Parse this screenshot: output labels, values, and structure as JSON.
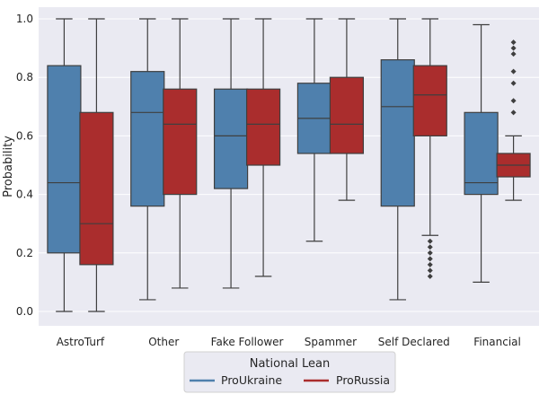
{
  "chart_data": {
    "type": "box",
    "ylabel": "Probability",
    "xlabel": "",
    "ylim": [
      -0.05,
      1.02
    ],
    "yticks": [
      0.0,
      0.2,
      0.4,
      0.6,
      0.8,
      1.0
    ],
    "ytick_labels": [
      "0.0",
      "0.2",
      "0.4",
      "0.6",
      "0.8",
      "1.0"
    ],
    "grid": true,
    "categories": [
      "AstroTurf",
      "Other",
      "Fake Follower",
      "Spammer",
      "Self Declared",
      "Financial"
    ],
    "legend": {
      "title": "National Lean",
      "placement": "bottom-center"
    },
    "series": [
      {
        "name": "ProUkraine",
        "color": "#4f80ad",
        "boxes": [
          {
            "whisker_low": 0.0,
            "q1": 0.2,
            "median": 0.44,
            "q3": 0.84,
            "whisker_high": 1.0,
            "outliers": []
          },
          {
            "whisker_low": 0.04,
            "q1": 0.36,
            "median": 0.68,
            "q3": 0.82,
            "whisker_high": 1.0,
            "outliers": []
          },
          {
            "whisker_low": 0.08,
            "q1": 0.42,
            "median": 0.6,
            "q3": 0.76,
            "whisker_high": 1.0,
            "outliers": []
          },
          {
            "whisker_low": 0.24,
            "q1": 0.54,
            "median": 0.66,
            "q3": 0.78,
            "whisker_high": 1.0,
            "outliers": []
          },
          {
            "whisker_low": 0.04,
            "q1": 0.36,
            "median": 0.7,
            "q3": 0.86,
            "whisker_high": 1.0,
            "outliers": []
          },
          {
            "whisker_low": 0.1,
            "q1": 0.4,
            "median": 0.44,
            "q3": 0.68,
            "whisker_high": 0.98,
            "outliers": []
          }
        ]
      },
      {
        "name": "ProRussia",
        "color": "#aa2d2d",
        "boxes": [
          {
            "whisker_low": 0.0,
            "q1": 0.16,
            "median": 0.3,
            "q3": 0.68,
            "whisker_high": 1.0,
            "outliers": []
          },
          {
            "whisker_low": 0.08,
            "q1": 0.4,
            "median": 0.64,
            "q3": 0.76,
            "whisker_high": 1.0,
            "outliers": []
          },
          {
            "whisker_low": 0.12,
            "q1": 0.5,
            "median": 0.64,
            "q3": 0.76,
            "whisker_high": 1.0,
            "outliers": []
          },
          {
            "whisker_low": 0.38,
            "q1": 0.54,
            "median": 0.64,
            "q3": 0.8,
            "whisker_high": 1.0,
            "outliers": []
          },
          {
            "whisker_low": 0.26,
            "q1": 0.6,
            "median": 0.74,
            "q3": 0.84,
            "whisker_high": 1.0,
            "outliers": [
              0.24,
              0.22,
              0.2,
              0.18,
              0.16,
              0.14,
              0.12
            ]
          },
          {
            "whisker_low": 0.38,
            "q1": 0.46,
            "median": 0.5,
            "q3": 0.54,
            "whisker_high": 0.6,
            "outliers": [
              0.68,
              0.72,
              0.78,
              0.82,
              0.88,
              0.9,
              0.92
            ]
          }
        ]
      }
    ]
  }
}
